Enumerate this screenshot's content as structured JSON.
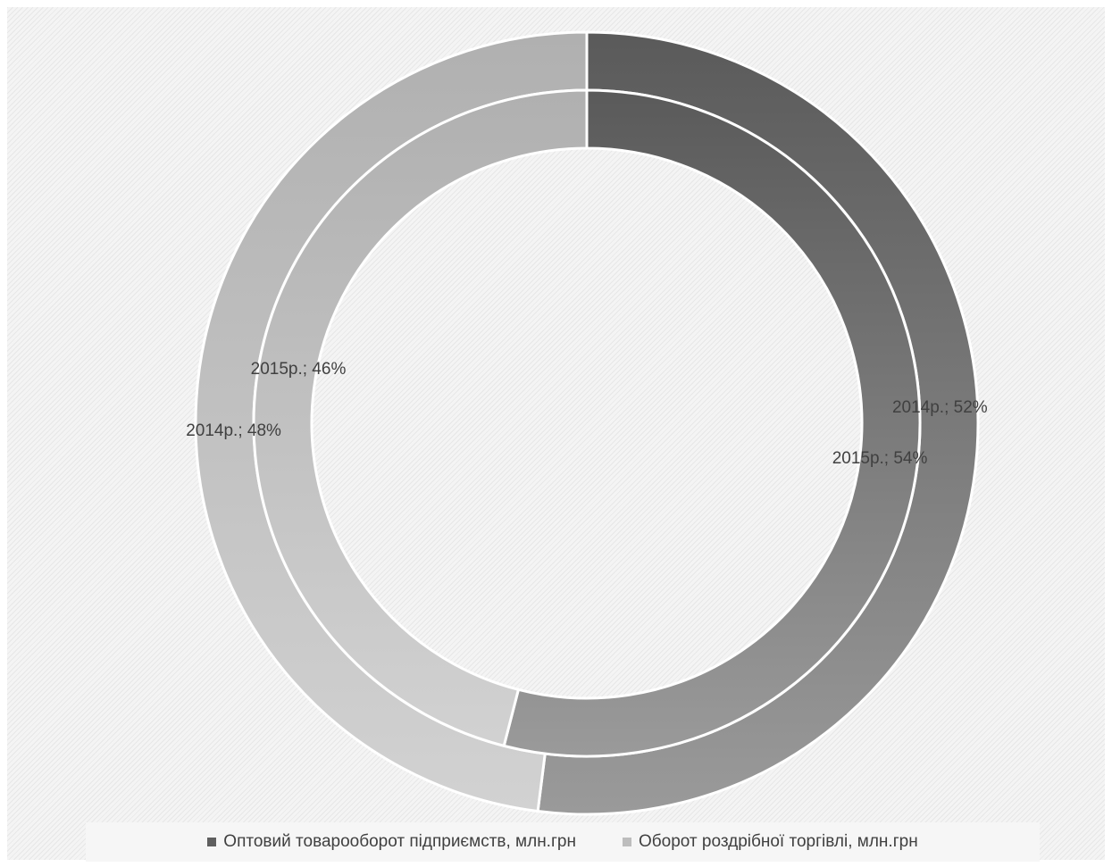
{
  "chart_data": {
    "type": "doughnut",
    "title": "",
    "categories": [
      "Оптовий товарооборот підприємств, млн.грн",
      "Оборот роздрібної торгівлі, млн.грн"
    ],
    "series": [
      {
        "name": "2014р.",
        "values": [
          52,
          48
        ],
        "labels": [
          "2014р.; 52%",
          "2014р.; 48%"
        ]
      },
      {
        "name": "2015р.",
        "values": [
          54,
          46
        ],
        "labels": [
          "2015р.; 54%",
          "2015р.; 46%"
        ]
      }
    ],
    "colors": {
      "wholesale": [
        "#5a5a5a",
        "#9a9a9a"
      ],
      "retail": [
        "#b0b0b0",
        "#d2d2d2"
      ],
      "separator": "#ffffff"
    },
    "legend_position": "bottom"
  },
  "legend": {
    "items": [
      {
        "label": "Оптовий товарооборот підприємств, млн.грн",
        "color": "#5f5f5f"
      },
      {
        "label": "Оборот роздрібної торгівлі, млн.грн",
        "color": "#bdbdbd"
      }
    ]
  }
}
